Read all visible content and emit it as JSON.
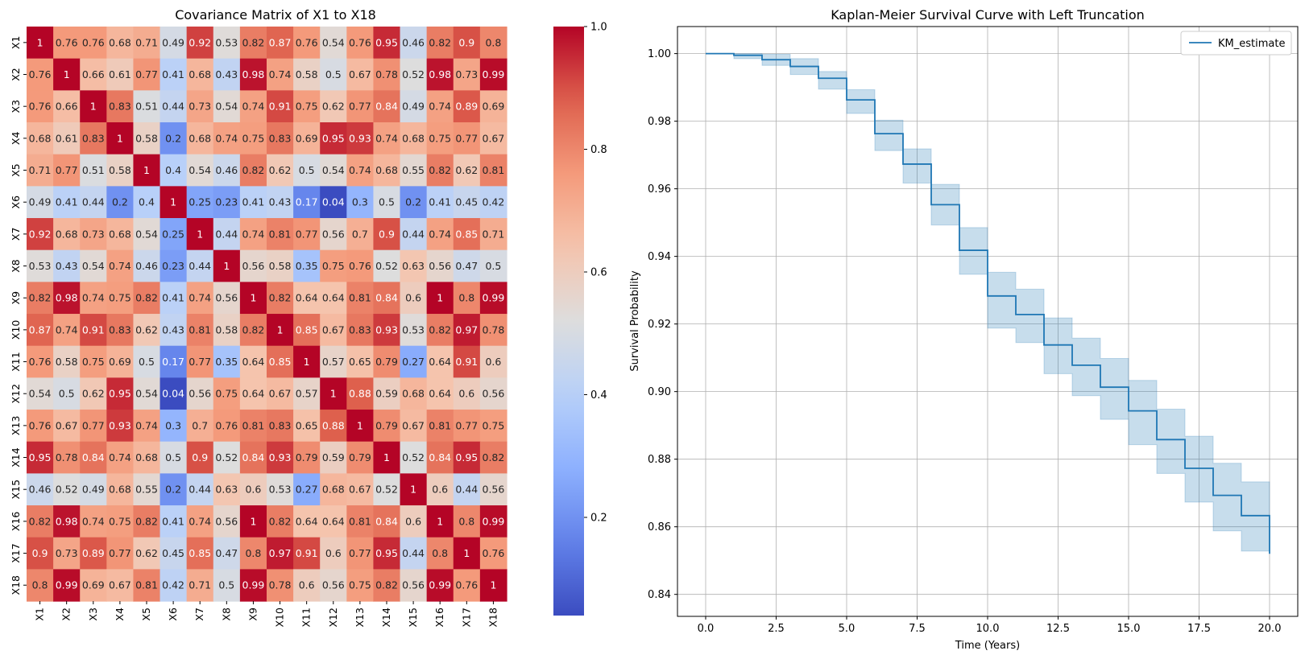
{
  "chart_data": [
    {
      "type": "heatmap",
      "title": "Covariance Matrix of X1 to X18",
      "labels": [
        "X1",
        "X2",
        "X3",
        "X4",
        "X5",
        "X6",
        "X7",
        "X8",
        "X9",
        "X10",
        "X11",
        "X12",
        "X13",
        "X14",
        "X15",
        "X16",
        "X17",
        "X18"
      ],
      "matrix": [
        [
          1,
          0.76,
          0.76,
          0.68,
          0.71,
          0.49,
          0.92,
          0.53,
          0.82,
          0.87,
          0.76,
          0.54,
          0.76,
          0.95,
          0.46,
          0.82,
          0.9,
          0.8
        ],
        [
          0.76,
          1,
          0.66,
          0.61,
          0.77,
          0.41,
          0.68,
          0.43,
          0.98,
          0.74,
          0.58,
          0.5,
          0.67,
          0.78,
          0.52,
          0.98,
          0.73,
          0.99
        ],
        [
          0.76,
          0.66,
          1,
          0.83,
          0.51,
          0.44,
          0.73,
          0.54,
          0.74,
          0.91,
          0.75,
          0.62,
          0.77,
          0.84,
          0.49,
          0.74,
          0.89,
          0.69
        ],
        [
          0.68,
          0.61,
          0.83,
          1,
          0.58,
          0.2,
          0.68,
          0.74,
          0.75,
          0.83,
          0.69,
          0.95,
          0.93,
          0.74,
          0.68,
          0.75,
          0.77,
          0.67
        ],
        [
          0.71,
          0.77,
          0.51,
          0.58,
          1,
          0.4,
          0.54,
          0.46,
          0.82,
          0.62,
          0.5,
          0.54,
          0.74,
          0.68,
          0.55,
          0.82,
          0.62,
          0.81
        ],
        [
          0.49,
          0.41,
          0.44,
          0.2,
          0.4,
          1,
          0.25,
          0.23,
          0.41,
          0.43,
          0.17,
          0.04,
          0.3,
          0.5,
          0.2,
          0.41,
          0.45,
          0.42
        ],
        [
          0.92,
          0.68,
          0.73,
          0.68,
          0.54,
          0.25,
          1,
          0.44,
          0.74,
          0.81,
          0.77,
          0.56,
          0.7,
          0.9,
          0.44,
          0.74,
          0.85,
          0.71
        ],
        [
          0.53,
          0.43,
          0.54,
          0.74,
          0.46,
          0.23,
          0.44,
          1,
          0.56,
          0.58,
          0.35,
          0.75,
          0.76,
          0.52,
          0.63,
          0.56,
          0.47,
          0.5
        ],
        [
          0.82,
          0.98,
          0.74,
          0.75,
          0.82,
          0.41,
          0.74,
          0.56,
          1,
          0.82,
          0.64,
          0.64,
          0.81,
          0.84,
          0.6,
          1,
          0.8,
          0.99
        ],
        [
          0.87,
          0.74,
          0.91,
          0.83,
          0.62,
          0.43,
          0.81,
          0.58,
          0.82,
          1,
          0.85,
          0.67,
          0.83,
          0.93,
          0.53,
          0.82,
          0.97,
          0.78
        ],
        [
          0.76,
          0.58,
          0.75,
          0.69,
          0.5,
          0.17,
          0.77,
          0.35,
          0.64,
          0.85,
          1,
          0.57,
          0.65,
          0.79,
          0.27,
          0.64,
          0.91,
          0.6
        ],
        [
          0.54,
          0.5,
          0.62,
          0.95,
          0.54,
          0.04,
          0.56,
          0.75,
          0.64,
          0.67,
          0.57,
          1,
          0.88,
          0.59,
          0.68,
          0.64,
          0.6,
          0.56
        ],
        [
          0.76,
          0.67,
          0.77,
          0.93,
          0.74,
          0.3,
          0.7,
          0.76,
          0.81,
          0.83,
          0.65,
          0.88,
          1,
          0.79,
          0.67,
          0.81,
          0.77,
          0.75
        ],
        [
          0.95,
          0.78,
          0.84,
          0.74,
          0.68,
          0.5,
          0.9,
          0.52,
          0.84,
          0.93,
          0.79,
          0.59,
          0.79,
          1,
          0.52,
          0.84,
          0.95,
          0.82
        ],
        [
          0.46,
          0.52,
          0.49,
          0.68,
          0.55,
          0.2,
          0.44,
          0.63,
          0.6,
          0.53,
          0.27,
          0.68,
          0.67,
          0.52,
          1,
          0.6,
          0.44,
          0.56
        ],
        [
          0.82,
          0.98,
          0.74,
          0.75,
          0.82,
          0.41,
          0.74,
          0.56,
          1,
          0.82,
          0.64,
          0.64,
          0.81,
          0.84,
          0.6,
          1,
          0.8,
          0.99
        ],
        [
          0.9,
          0.73,
          0.89,
          0.77,
          0.62,
          0.45,
          0.85,
          0.47,
          0.8,
          0.97,
          0.91,
          0.6,
          0.77,
          0.95,
          0.44,
          0.8,
          1,
          0.76
        ],
        [
          0.8,
          0.99,
          0.69,
          0.67,
          0.81,
          0.42,
          0.71,
          0.5,
          0.99,
          0.78,
          0.6,
          0.56,
          0.75,
          0.82,
          0.56,
          0.99,
          0.76,
          1
        ]
      ],
      "value_range": [
        0.04,
        1.0
      ],
      "colormap": "coolwarm",
      "colorbar_ticks": [
        0.2,
        0.4,
        0.6,
        0.8,
        1.0
      ],
      "colorbar_tick_labels": [
        "0.2",
        "0.4",
        "0.6",
        "0.8",
        "1.0"
      ],
      "annotated": true
    },
    {
      "type": "line",
      "step": true,
      "title": "Kaplan-Meier Survival Curve with Left Truncation",
      "xlabel": "Time (Years)",
      "ylabel": "Survival Probability",
      "xlim": [
        -1,
        21
      ],
      "ylim": [
        0.8335,
        1.008
      ],
      "xticks": [
        0.0,
        2.5,
        5.0,
        7.5,
        10.0,
        12.5,
        15.0,
        17.5,
        20.0
      ],
      "xtick_labels": [
        "0.0",
        "2.5",
        "5.0",
        "7.5",
        "10.0",
        "12.5",
        "15.0",
        "17.5",
        "20.0"
      ],
      "yticks": [
        0.84,
        0.86,
        0.88,
        0.9,
        0.92,
        0.94,
        0.96,
        0.98,
        1.0
      ],
      "ytick_labels": [
        "0.84",
        "0.86",
        "0.88",
        "0.90",
        "0.92",
        "0.94",
        "0.96",
        "0.98",
        "1.00"
      ],
      "grid": true,
      "legend_position": "top-right",
      "series": [
        {
          "name": "KM_estimate",
          "color": "#1f77b4",
          "x": [
            0,
            1,
            2,
            3,
            4,
            5,
            6,
            7,
            8,
            9,
            10,
            11,
            12,
            13,
            14,
            15,
            16,
            17,
            18,
            19,
            20
          ],
          "y": [
            1.0,
            0.9995,
            0.9982,
            0.9962,
            0.9927,
            0.9863,
            0.9763,
            0.9673,
            0.9553,
            0.9418,
            0.9283,
            0.9228,
            0.9138,
            0.9078,
            0.9013,
            0.8943,
            0.8858,
            0.8773,
            0.8693,
            0.8633,
            0.852
          ],
          "ci_lower": [
            1.0,
            0.9985,
            0.9965,
            0.9938,
            0.9895,
            0.9823,
            0.9713,
            0.9617,
            0.9493,
            0.9347,
            0.9188,
            0.9145,
            0.9053,
            0.8988,
            0.8918,
            0.8843,
            0.8758,
            0.8673,
            0.8588,
            0.8528,
            0.852
          ],
          "ci_upper": [
            1.0,
            1.0,
            0.9998,
            0.9985,
            0.9947,
            0.9893,
            0.9803,
            0.9718,
            0.9613,
            0.9485,
            0.9353,
            0.9303,
            0.9218,
            0.9158,
            0.9098,
            0.9033,
            0.8948,
            0.8868,
            0.8788,
            0.8733,
            0.852
          ]
        }
      ]
    }
  ]
}
